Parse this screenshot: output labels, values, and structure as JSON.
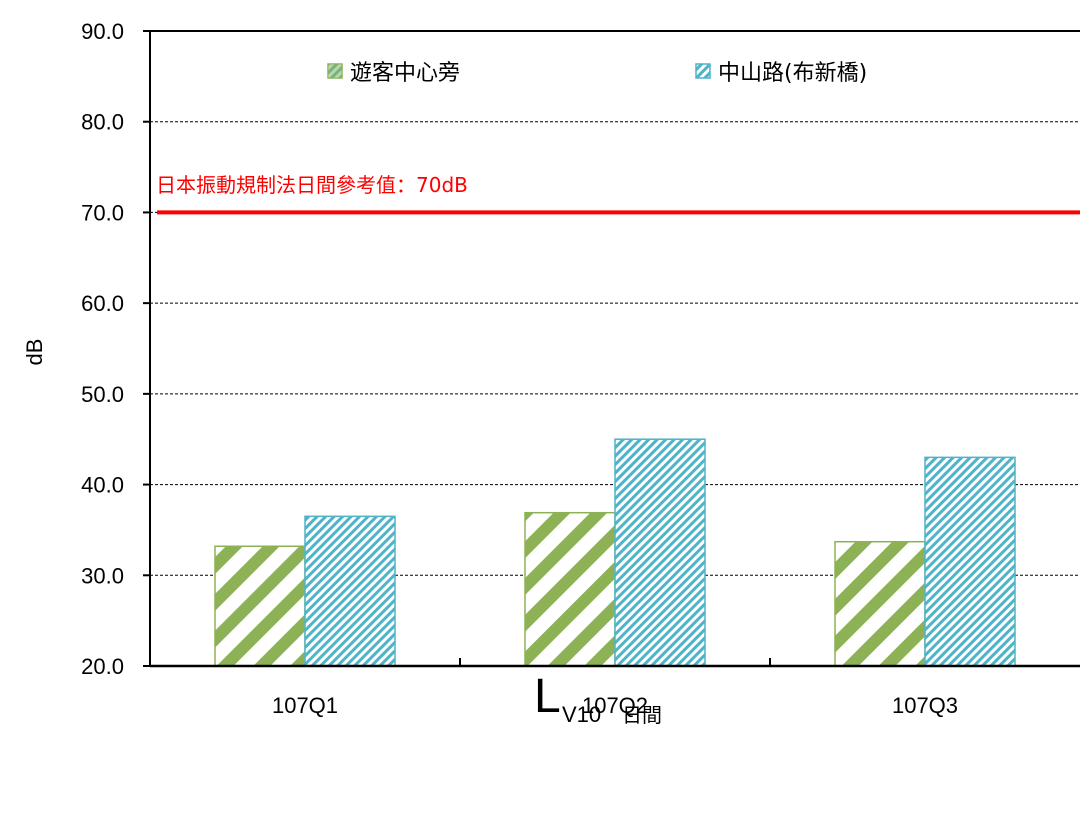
{
  "chart_data": {
    "type": "bar",
    "categories": [
      "107Q1",
      "107Q2",
      "107Q3"
    ],
    "series": [
      {
        "name": "遊客中心旁",
        "values": [
          33.2,
          36.9,
          33.7
        ],
        "color": "#8db255",
        "pattern": "hatch-wide"
      },
      {
        "name": "中山路(布新橋)",
        "values": [
          36.5,
          45.0,
          43.0
        ],
        "color": "#4fb3c9",
        "pattern": "hatch-fine"
      }
    ],
    "ylabel": "dB",
    "ylim": [
      20,
      90
    ],
    "yticks": [
      "20.0",
      "30.0",
      "40.0",
      "50.0",
      "60.0",
      "70.0",
      "80.0",
      "90.0"
    ],
    "grid": true,
    "legend_position": "top",
    "reference_line": {
      "value": 70,
      "label": "日本振動規制法日間參考值：70dB",
      "color": "#ff0000"
    },
    "xtitle": {
      "main": "L",
      "sub": "V10",
      "sub2": "日間"
    }
  }
}
